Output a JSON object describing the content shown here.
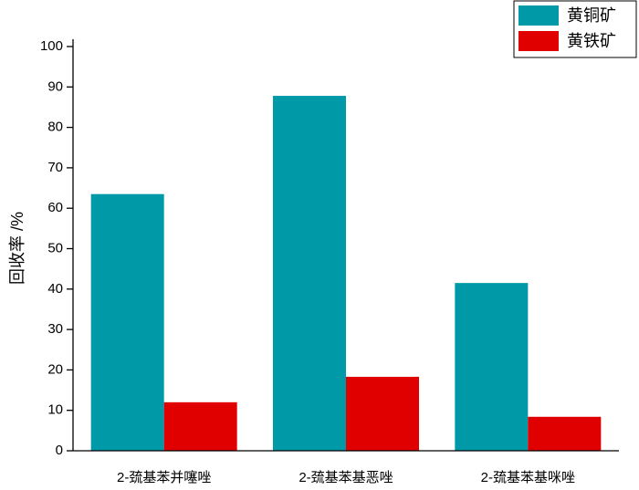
{
  "chart_data": {
    "type": "bar",
    "y_label": "回收率 /%",
    "categories": [
      "2-巯基苯并噻唑",
      "2-巯基苯基恶唑",
      "2-巯基苯基咪唑"
    ],
    "series": [
      {
        "name": "黄铜矿",
        "color": "#0099a8",
        "values": [
          63.5,
          87.8,
          41.5
        ]
      },
      {
        "name": "黄铁矿",
        "color": "#e00000",
        "values": [
          12.0,
          18.3,
          8.4
        ]
      }
    ],
    "ylim": [
      0,
      100
    ],
    "yticks": [
      0,
      10,
      20,
      30,
      40,
      50,
      60,
      70,
      80,
      90,
      100
    ],
    "legend": "top-right"
  }
}
